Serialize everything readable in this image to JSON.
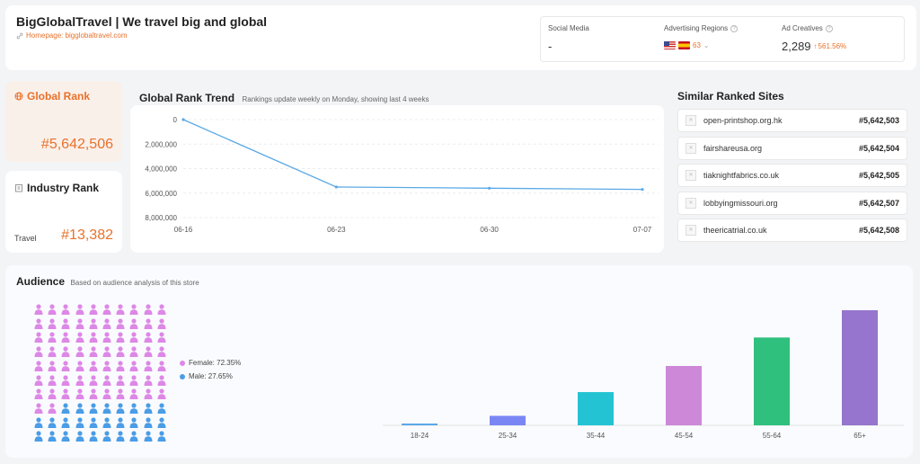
{
  "header": {
    "title": "BigGlobalTravel | We travel big and global",
    "homepage": "Homepage: bigglobaltravel.com",
    "social_media_label": "Social Media",
    "social_media_value": "-",
    "ad_regions_label": "Advertising Regions",
    "ad_regions_count": "63",
    "ad_creatives_label": "Ad Creatives",
    "ad_creatives_value": "2,289",
    "ad_creatives_growth": "561.56%"
  },
  "global_rank": {
    "title": "Global Rank",
    "value": "#5,642,506"
  },
  "industry_rank": {
    "title": "Industry Rank",
    "category": "Travel",
    "value": "#13,382"
  },
  "trend": {
    "title": "Global Rank Trend",
    "subtitle": "Rankings update weekly on Monday, showing last 4 weeks",
    "chart_data": {
      "type": "line",
      "x": [
        "06-16",
        "06-23",
        "06-30",
        "07-07"
      ],
      "values": [
        0,
        5500000,
        5600000,
        5700000
      ],
      "yticks": [
        "0",
        "2,000,000",
        "4,000,000",
        "6,000,000",
        "8,000,000"
      ],
      "ylim": [
        0,
        8000000
      ],
      "y_inverted": true,
      "grid": true,
      "color": "#5aa9e6"
    }
  },
  "similar": {
    "title": "Similar Ranked Sites",
    "sites": [
      {
        "name": "open-printshop.org.hk",
        "rank": "#5,642,503"
      },
      {
        "name": "fairshareusa.org",
        "rank": "#5,642,504"
      },
      {
        "name": "tiaknightfabrics.co.uk",
        "rank": "#5,642,505"
      },
      {
        "name": "lobbyingmissouri.org",
        "rank": "#5,642,507"
      },
      {
        "name": "theericatrial.co.uk",
        "rank": "#5,642,508"
      }
    ]
  },
  "audience": {
    "title": "Audience",
    "subtitle": "Based on audience analysis of this store",
    "female_label": "Female: 72.35%",
    "male_label": "Male: 27.65%",
    "female_fraction": 0.7235,
    "female_color": "#dd88e6",
    "male_color": "#4a9de6",
    "chart_data": {
      "type": "bar",
      "categories": [
        "18-24",
        "25-34",
        "35-44",
        "45-54",
        "55-64",
        "65+"
      ],
      "values": [
        1,
        8,
        28,
        50,
        74,
        97
      ],
      "colors": [
        "#5aa9e6",
        "#7b86f5",
        "#24c3d4",
        "#cd88d8",
        "#2fc07e",
        "#9575cd"
      ],
      "ylim": [
        0,
        100
      ]
    }
  }
}
